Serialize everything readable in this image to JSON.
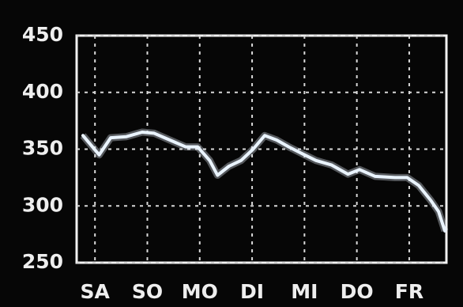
{
  "chart_data": {
    "type": "line",
    "x": [
      -0.23,
      0.08,
      0.3,
      0.6,
      0.9,
      1.13,
      1.43,
      1.73,
      1.96,
      2.19,
      2.34,
      2.56,
      2.79,
      3.02,
      3.24,
      3.47,
      3.7,
      4.0,
      4.22,
      4.52,
      4.83,
      5.05,
      5.35,
      5.73,
      5.96,
      6.18,
      6.41,
      6.56,
      6.68
    ],
    "values": [
      362,
      345,
      360,
      361,
      365,
      364,
      358,
      352,
      352,
      340,
      327,
      335,
      340,
      350,
      362,
      358,
      352,
      345,
      340,
      336,
      328,
      332,
      326,
      325,
      325,
      318,
      305,
      295,
      278
    ],
    "color": "#eaf4ff",
    "xlim": [
      -0.35,
      6.71
    ],
    "xticks": [
      {
        "value": 0,
        "label": "SA"
      },
      {
        "value": 1,
        "label": "SO"
      },
      {
        "value": 2,
        "label": "MO"
      },
      {
        "value": 3,
        "label": "DI"
      },
      {
        "value": 4,
        "label": "MI"
      },
      {
        "value": 5,
        "label": "DO"
      },
      {
        "value": 6,
        "label": "FR"
      }
    ],
    "ylim": [
      250,
      450
    ],
    "yticks": [
      250,
      300,
      350,
      400,
      450
    ],
    "grid": true
  }
}
